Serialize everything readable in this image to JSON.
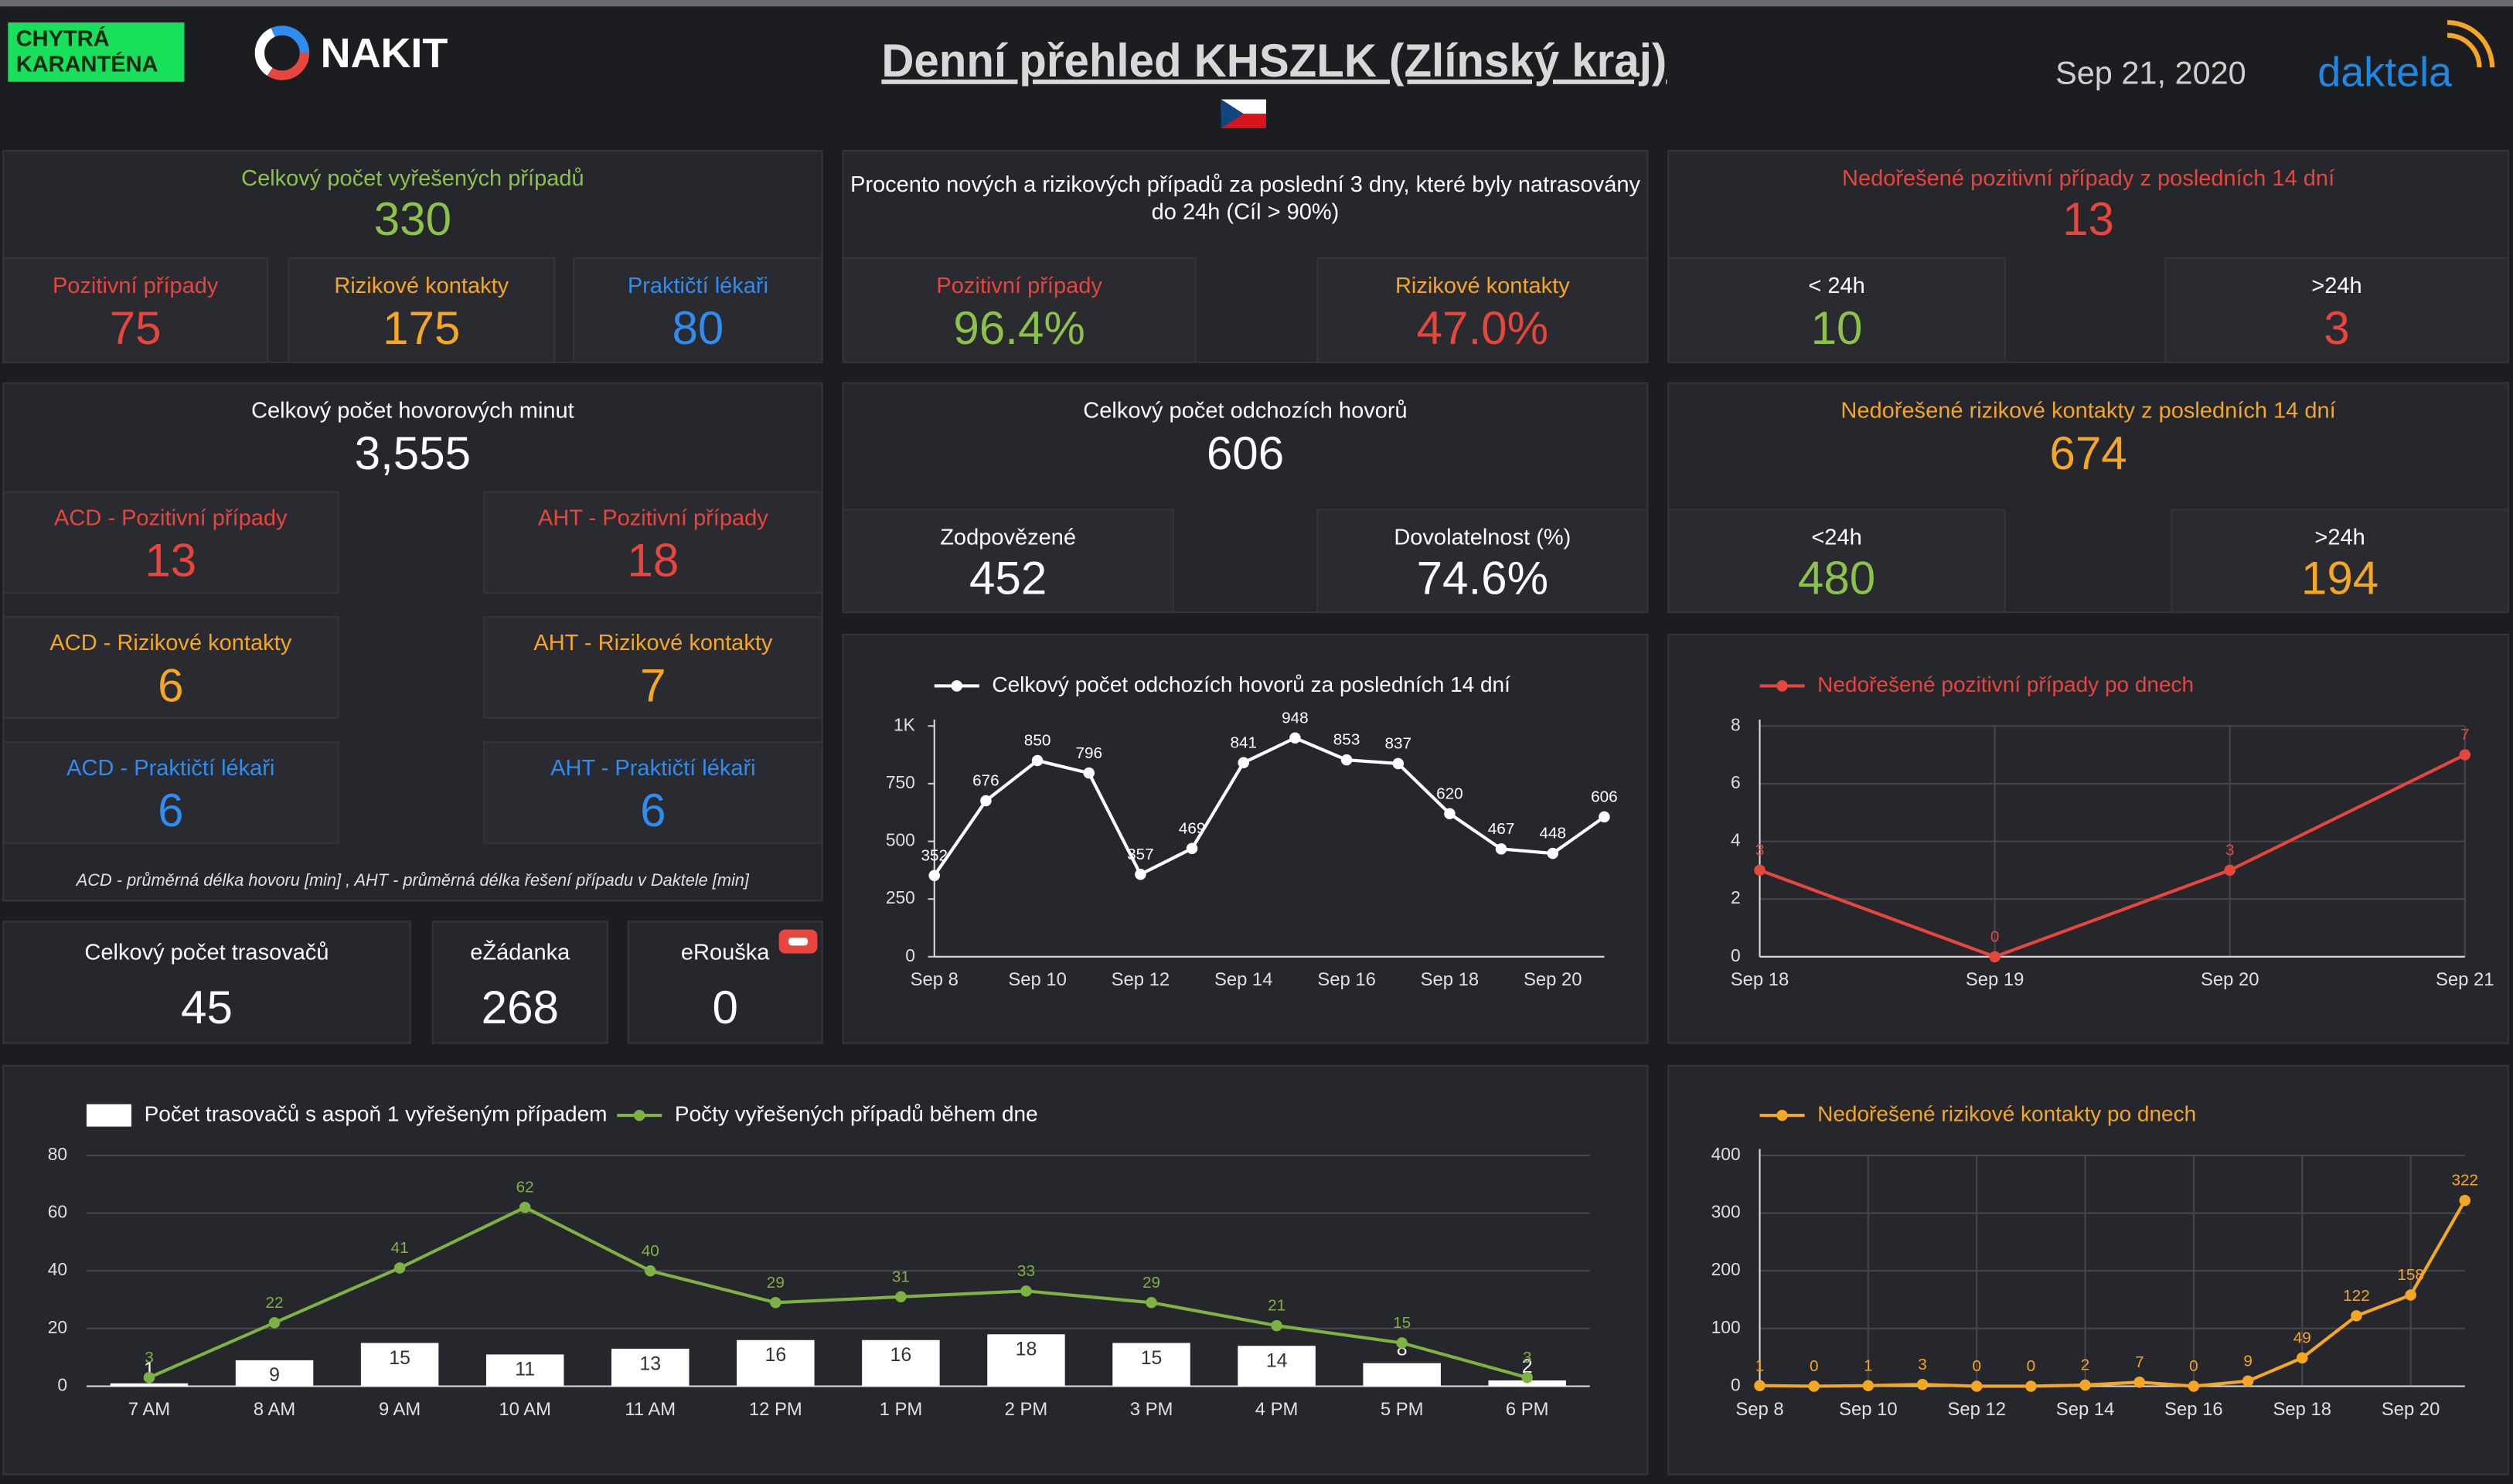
{
  "header": {
    "logo_lines": [
      "CHYTRÁ",
      "KARANTÉNA"
    ],
    "brand": "NAKIT",
    "title": "Denní přehled KHSZLK (Zlínský kraj)",
    "date": "Sep 21, 2020",
    "partner": "daktela"
  },
  "panels": [
    {
      "title": "Celkový počet vyřešených případů",
      "title_color": "#8bc34a",
      "value": "330",
      "value_color": "#8bc34a",
      "items": [
        {
          "label": "Pozitivní případy",
          "label_color": "#e8453c",
          "value": "75",
          "value_color": "#e8453c"
        },
        {
          "label": "Rizikové kontakty",
          "label_color": "#f5a623",
          "value": "175",
          "value_color": "#f5a623"
        },
        {
          "label": "Praktičtí lékaři",
          "label_color": "#2f8cf0",
          "value": "80",
          "value_color": "#2f8cf0"
        }
      ]
    },
    {
      "title": [
        "Procento nových a rizikových případů za poslední 3 dny, které byly natrasovány",
        "do 24h (Cíl > 90%)"
      ],
      "title_color": "#ffffff",
      "items": [
        {
          "label": "Pozitivní případy",
          "label_color": "#e8453c",
          "value": "96.4%",
          "value_color": "#8bc34a"
        },
        {
          "label": "Rizikové kontakty",
          "label_color": "#f5a623",
          "value": "47.0%",
          "value_color": "#e8453c"
        }
      ]
    },
    {
      "title": "Nedořešené pozitivní případy z posledních 14 dní",
      "title_color": "#e8453c",
      "value": "13",
      "value_color": "#e8453c",
      "items": [
        {
          "label": "< 24h",
          "label_color": "#ffffff",
          "value": "10",
          "value_color": "#8bc34a"
        },
        {
          "label": ">24h",
          "label_color": "#ffffff",
          "value": "3",
          "value_color": "#e8453c"
        }
      ]
    },
    {
      "title": "Celkový počet hovorových minut",
      "title_color": "#ffffff",
      "value": "3,555",
      "value_color": "#ffffff",
      "items": [
        {
          "label": "ACD - Pozitivní případy",
          "label_color": "#e8453c",
          "value": "13",
          "value_color": "#e8453c"
        },
        {
          "label": "AHT - Pozitivní případy",
          "label_color": "#e8453c",
          "value": "18",
          "value_color": "#e8453c"
        },
        {
          "label": "ACD - Rizikové kontakty",
          "label_color": "#f5a623",
          "value": "6",
          "value_color": "#f5a623"
        },
        {
          "label": "AHT - Rizikové kontakty",
          "label_color": "#f5a623",
          "value": "7",
          "value_color": "#f5a623"
        },
        {
          "label": "ACD - Praktičtí lékaři",
          "label_color": "#2f8cf0",
          "value": "6",
          "value_color": "#2f8cf0"
        },
        {
          "label": "AHT - Praktičtí lékaři",
          "label_color": "#2f8cf0",
          "value": "6",
          "value_color": "#2f8cf0"
        }
      ],
      "note": "ACD - průměrná délka hovoru [min] , AHT - průměrná délka řešení případu v Daktele [min]"
    },
    {
      "title": "Celkový počet odchozích hovorů",
      "title_color": "#ffffff",
      "value": "606",
      "value_color": "#ffffff",
      "items": [
        {
          "label": "Zodpovězené",
          "label_color": "#ffffff",
          "value": "452",
          "value_color": "#ffffff"
        },
        {
          "label": "Dovolatelnost (%)",
          "label_color": "#ffffff",
          "value": "74.6%",
          "value_color": "#ffffff"
        }
      ]
    },
    {
      "title": "Nedořešené rizikové kontakty z posledních 14 dní",
      "title_color": "#f5a623",
      "value": "674",
      "value_color": "#f5a623",
      "items": [
        {
          "label": "<24h",
          "label_color": "#ffffff",
          "value": "480",
          "value_color": "#8bc34a"
        },
        {
          "label": ">24h",
          "label_color": "#ffffff",
          "value": "194",
          "value_color": "#f5a623"
        }
      ]
    },
    {
      "items": [
        {
          "label": "Celkový počet trasovačů",
          "label_color": "#ffffff",
          "value": "45",
          "value_color": "#ffffff"
        },
        {
          "label": "eŽádanka",
          "label_color": "#ffffff",
          "value": "268",
          "value_color": "#ffffff"
        },
        {
          "label": "eRouška",
          "label_color": "#ffffff",
          "value": "0",
          "value_color": "#ffffff"
        }
      ]
    }
  ],
  "chart_data": [
    {
      "type": "line",
      "categories": [
        "Sep 8",
        null,
        "Sep 10",
        null,
        "Sep 12",
        null,
        "Sep 14",
        null,
        "Sep 16",
        null,
        "Sep 18",
        null,
        "Sep 20",
        null
      ],
      "series": [
        {
          "name": "Celkový počet odchozích hovorů za posledních 14 dní",
          "color": "#ffffff",
          "values": [
            352,
            676,
            850,
            796,
            357,
            469,
            841,
            948,
            853,
            837,
            620,
            467,
            448,
            606
          ]
        }
      ],
      "ylim": [
        0,
        1000
      ],
      "yticks": [
        0,
        250,
        500,
        750,
        {
          "value": 1000,
          "label": "1K"
        }
      ],
      "grid": false
    },
    {
      "type": "line",
      "categories": [
        "Sep 18",
        "Sep 19",
        "Sep 20",
        "Sep 21"
      ],
      "series": [
        {
          "name": "Nedořešené pozitivní případy po dnech",
          "color": "#e8453c",
          "values": [
            3,
            0,
            3,
            7
          ]
        }
      ],
      "ylim": [
        0,
        8
      ],
      "yticks": [
        0,
        2,
        4,
        6,
        8
      ],
      "grid": true
    },
    {
      "type": "combo",
      "categories": [
        "7 AM",
        "8 AM",
        "9 AM",
        "10 AM",
        "11 AM",
        "12 PM",
        "1 PM",
        "2 PM",
        "3 PM",
        "4 PM",
        "5 PM",
        "6 PM"
      ],
      "series": [
        {
          "name": "Počet trasovačů s aspoň 1 vyřešeným případem",
          "color": "#ffffff",
          "kind": "bar",
          "values": [
            1,
            9,
            15,
            11,
            13,
            16,
            16,
            18,
            15,
            14,
            8,
            2
          ]
        },
        {
          "name": "Počty vyřešených případů během dne",
          "color": "#7cb342",
          "kind": "line",
          "values": [
            3,
            22,
            41,
            62,
            40,
            29,
            31,
            33,
            29,
            21,
            15,
            3
          ]
        }
      ],
      "ylim": [
        0,
        80
      ],
      "yticks": [
        0,
        20,
        40,
        60,
        80
      ],
      "grid": true
    },
    {
      "type": "line",
      "categories": [
        "Sep 8",
        null,
        "Sep 10",
        null,
        "Sep 12",
        null,
        "Sep 14",
        null,
        "Sep 16",
        null,
        "Sep 18",
        null,
        "Sep 20",
        null
      ],
      "series": [
        {
          "name": "Nedořešené rizikové kontakty po dnech",
          "color": "#f5a623",
          "values": [
            1,
            0,
            1,
            3,
            0,
            0,
            2,
            7,
            0,
            9,
            49,
            122,
            158,
            322
          ]
        }
      ],
      "ylim": [
        0,
        400
      ],
      "yticks": [
        0,
        100,
        200,
        300,
        400
      ],
      "grid": true
    }
  ]
}
